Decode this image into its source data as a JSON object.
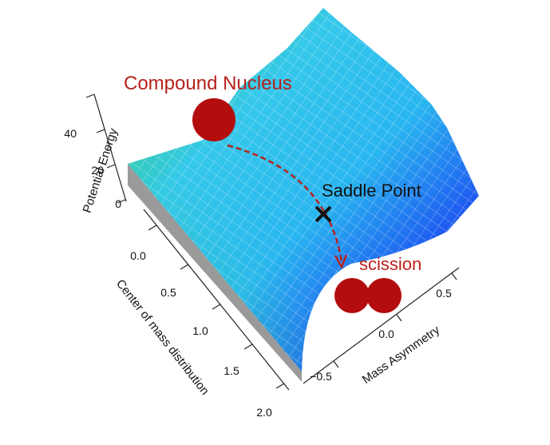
{
  "annotations": {
    "compound_nucleus": "Compound Nucleus",
    "saddle_point": "Saddle Point",
    "scission": "scission"
  },
  "axes": {
    "z": {
      "label": "Potential Energy",
      "ticks": [
        "0",
        "20",
        "40"
      ]
    },
    "x": {
      "label": "Center of mass distribution",
      "ticks": [
        "0.0",
        "0.5",
        "1.0",
        "1.5",
        "2.0"
      ]
    },
    "y": {
      "label": "Mass Asymmetry",
      "ticks": [
        "−0.5",
        "0.0",
        "0.5"
      ]
    }
  }
}
